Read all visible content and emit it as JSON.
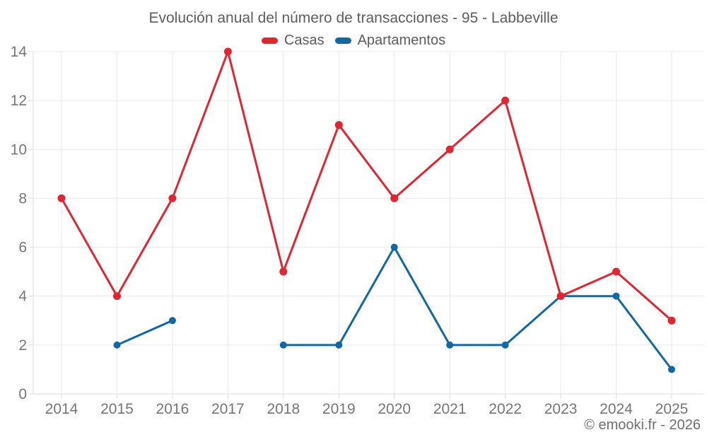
{
  "header": {
    "title": "Evolución anual del número de transacciones - 95 - Labbeville"
  },
  "legend": {
    "items": [
      {
        "label": "Casas",
        "color": "#e02630"
      },
      {
        "label": "Apartamentos",
        "color": "#1268a3"
      }
    ]
  },
  "footer": {
    "credit": "© emooki.fr - 2026"
  },
  "chart_data": {
    "type": "line",
    "title": "Evolución anual del número de transacciones - 95 - Labbeville",
    "categories": [
      "2014",
      "2015",
      "2016",
      "2017",
      "2018",
      "2019",
      "2020",
      "2021",
      "2022",
      "2023",
      "2024",
      "2025"
    ],
    "series": [
      {
        "name": "Casas",
        "color": "#e02630",
        "point_radius": 5.5,
        "values": [
          8,
          4,
          8,
          14,
          5,
          11,
          8,
          10,
          12,
          4,
          5,
          3
        ]
      },
      {
        "name": "Apartamentos",
        "color": "#1268a3",
        "point_radius": 5,
        "values": [
          null,
          2,
          3,
          null,
          2,
          2,
          6,
          2,
          2,
          4,
          4,
          1
        ]
      }
    ],
    "xlabel": "",
    "ylabel": "",
    "ylim": [
      0,
      14
    ],
    "yticks": [
      0,
      2,
      4,
      6,
      8,
      10,
      12,
      14
    ],
    "grid": true,
    "legend_position": "top",
    "grid_color": "#e9e9e9",
    "axis_color": "#dcdcdc",
    "tick_label_color": "#767676"
  }
}
